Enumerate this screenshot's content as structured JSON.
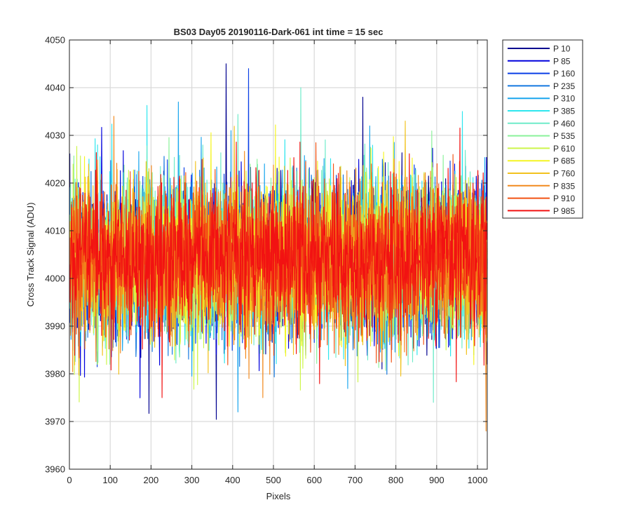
{
  "chart_data": {
    "type": "line",
    "title": "BS03 Day05 20190116-Dark-061 int time = 15 sec",
    "xlabel": "Pixels",
    "ylabel": "Cross Track Signal (ADU)",
    "xlim": [
      0,
      1024
    ],
    "ylim": [
      3960,
      4050
    ],
    "xticks": [
      0,
      100,
      200,
      300,
      400,
      500,
      600,
      700,
      800,
      900,
      1000
    ],
    "yticks": [
      3960,
      3970,
      3980,
      3990,
      4000,
      4010,
      4020,
      4030,
      4040,
      4050
    ],
    "grid": true,
    "legend_position": "outside-top-right",
    "noise": {
      "mean": 4004,
      "sd": 8,
      "min": 3968,
      "max": 4045,
      "points_per_series": 1024
    },
    "series": [
      {
        "name": "P 10",
        "color": "#00008F"
      },
      {
        "name": "P 85",
        "color": "#0000DD"
      },
      {
        "name": "P 160",
        "color": "#0A3FE6"
      },
      {
        "name": "P 235",
        "color": "#1478E0"
      },
      {
        "name": "P 310",
        "color": "#1AA6EE"
      },
      {
        "name": "P 385",
        "color": "#2EE6EE"
      },
      {
        "name": "P 460",
        "color": "#6EEBC9"
      },
      {
        "name": "P 535",
        "color": "#8AF29A"
      },
      {
        "name": "P 610",
        "color": "#CDF54A"
      },
      {
        "name": "P 685",
        "color": "#F5F522"
      },
      {
        "name": "P 760",
        "color": "#F2C21E"
      },
      {
        "name": "P 835",
        "color": "#F28A1E"
      },
      {
        "name": "P 910",
        "color": "#F25314"
      },
      {
        "name": "P 985",
        "color": "#F21212"
      }
    ],
    "spikes": [
      {
        "series": "P 10",
        "x": 383,
        "y": 4045
      },
      {
        "series": "P 160",
        "x": 438,
        "y": 4044
      },
      {
        "series": "P 10",
        "x": 718,
        "y": 4038
      },
      {
        "series": "P 460",
        "x": 566,
        "y": 4040
      },
      {
        "series": "P 310",
        "x": 412,
        "y": 3972
      },
      {
        "series": "P 310",
        "x": 266,
        "y": 4037
      },
      {
        "series": "P 835",
        "x": 108,
        "y": 4034
      },
      {
        "series": "P 460",
        "x": 891,
        "y": 3974
      },
      {
        "series": "P 985",
        "x": 226,
        "y": 3975
      },
      {
        "series": "P 835",
        "x": 1020,
        "y": 3968
      },
      {
        "series": "P 385",
        "x": 962,
        "y": 4035
      },
      {
        "series": "P 835",
        "x": 473,
        "y": 3975
      },
      {
        "series": "P 760",
        "x": 822,
        "y": 4033
      }
    ]
  }
}
